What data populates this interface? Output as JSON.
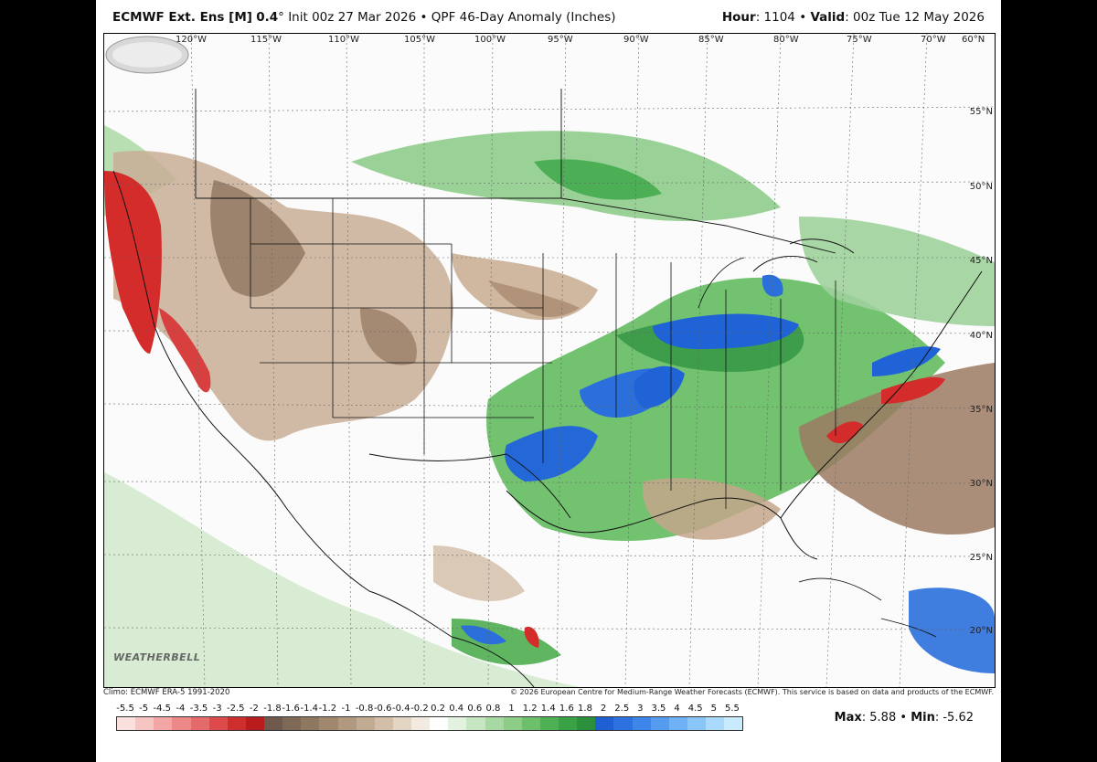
{
  "header": {
    "model": "ECMWF Ext. Ens [M]",
    "resolution": "0.4",
    "degree": "°",
    "init": "Init 00z 27 Mar 2026",
    "bullet": "•",
    "product": "QPF 46-Day Anomaly (Inches)",
    "hour_label": "Hour",
    "hour_value": ": 1104",
    "valid_label": "Valid",
    "valid_value": ": 00z Tue 12 May 2026"
  },
  "map": {
    "longitude_labels": [
      "120°W",
      "115°W",
      "110°W",
      "105°W",
      "100°W",
      "95°W",
      "90°W",
      "85°W",
      "80°W",
      "75°W",
      "70°W",
      "60°N"
    ],
    "latitude_labels": [
      "55°N",
      "50°N",
      "45°N",
      "40°N",
      "35°N",
      "30°N",
      "25°N",
      "20°N"
    ],
    "logo_text": "WEATHERBELL",
    "colors": {
      "dry_strong": "#d42b2b",
      "dry_mid": "#9c7a62",
      "dry_light": "#d6bfa8",
      "wet_light": "#9ed39a",
      "wet_mid": "#3fae52",
      "wet_strong": "#1f63d6",
      "wet_extreme": "#5c9cf0"
    }
  },
  "footer": {
    "climo": "Climo: ECMWF ERA-5 1991-2020",
    "copyright": "© 2026 European Centre for Medium-Range Weather Forecasts (ECMWF). This service is based on data and products of the ECMWF.",
    "max_label": "Max",
    "max_value": ": 5.88",
    "min_label": "Min",
    "min_value": ": -5.62"
  },
  "colorbar": {
    "ticks": [
      "-5.5",
      "-5",
      "-4.5",
      "-4",
      "-3.5",
      "-3",
      "-2.5",
      "-2",
      "-1.8",
      "-1.6",
      "-1.4",
      "-1.2",
      "-1",
      "-0.8",
      "-0.6",
      "-0.4",
      "-0.2",
      "0.2",
      "0.4",
      "0.6",
      "0.8",
      "1",
      "1.2",
      "1.4",
      "1.6",
      "1.8",
      "2",
      "2.5",
      "3",
      "3.5",
      "4",
      "4.5",
      "5",
      "5.5"
    ],
    "colors": [
      "#fbe0e0",
      "#f7c4c4",
      "#f2a6a6",
      "#ec8888",
      "#e56a6a",
      "#dc4a4a",
      "#cf2e2e",
      "#b81c1c",
      "#6e5a4c",
      "#7e6856",
      "#8f7862",
      "#a0886f",
      "#b0997f",
      "#c2ab93",
      "#d3bfa9",
      "#e3d4c3",
      "#f3ebe2",
      "#ffffff",
      "#e2f2df",
      "#c6e6c1",
      "#a8d9a3",
      "#8bcc86",
      "#6dbf6b",
      "#4fb153",
      "#39a247",
      "#2a903c",
      "#1e5fd4",
      "#2d72e0",
      "#3f86ea",
      "#559bf0",
      "#6eb1f5",
      "#8ac5f8",
      "#a9d9fb",
      "#c8ecfd"
    ]
  }
}
